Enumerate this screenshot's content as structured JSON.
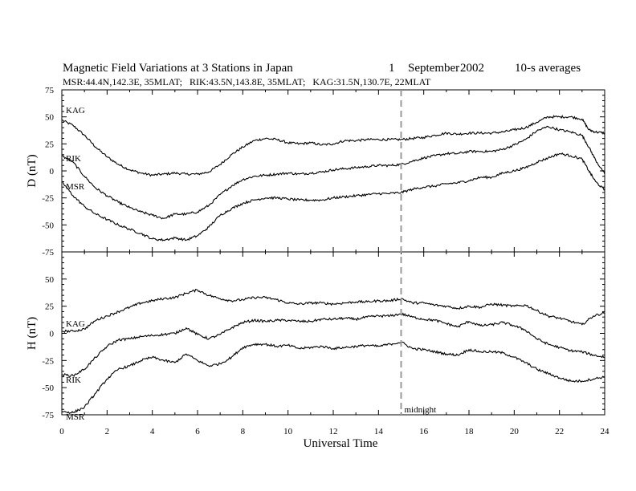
{
  "chart_data": {
    "type": "line",
    "title": "Magnetic Field Variations at 3 Stations in Japan",
    "date_day": "1",
    "date_month": "September",
    "date_year": "2002",
    "averaging": "10-s averages",
    "stations_line": "MSR:44.4N,142.3E, 35MLAT;   RIK:43.5N,143.8E, 35MLAT;   KAG:31.5N,130.7E, 22MLAT",
    "xlabel": "Universal Time",
    "xlim": [
      0,
      24
    ],
    "x_ticks": [
      "0",
      "2",
      "4",
      "6",
      "8",
      "10",
      "12",
      "14",
      "16",
      "18",
      "20",
      "22",
      "24"
    ],
    "marker": {
      "x": 15,
      "label": "midnight"
    },
    "panels": [
      {
        "ylabel": "D (nT)",
        "ylim": [
          -75,
          75
        ],
        "y_ticks": [
          "75",
          "50",
          "25",
          "0",
          "-25",
          "-50",
          "-75"
        ],
        "series": [
          {
            "name": "KAG",
            "x": [
              0,
              0.5,
              1,
              1.5,
              2,
              2.5,
              3,
              3.5,
              4,
              4.5,
              5,
              5.5,
              6,
              6.5,
              7,
              7.5,
              8,
              8.5,
              9,
              9.5,
              10,
              10.5,
              11,
              11.5,
              12,
              12.5,
              13,
              13.5,
              14,
              14.5,
              15,
              15.5,
              16,
              16.5,
              17,
              17.5,
              18,
              18.5,
              19,
              19.5,
              20,
              20.5,
              21,
              21.5,
              22,
              22.5,
              23,
              23.3,
              23.6,
              24
            ],
            "y": [
              47,
              42,
              33,
              22,
              13,
              6,
              1,
              -2,
              -4,
              -3,
              -2,
              -3,
              -3,
              -1,
              6,
              15,
              22,
              28,
              30,
              29,
              26,
              25,
              26,
              24,
              25,
              28,
              28,
              29,
              29,
              29,
              29,
              30,
              31,
              33,
              35,
              34,
              35,
              35,
              35,
              36,
              38,
              40,
              45,
              50,
              50,
              50,
              48,
              38,
              36,
              35
            ]
          },
          {
            "name": "RIK",
            "x": [
              0,
              0.5,
              1,
              1.5,
              2,
              2.5,
              3,
              3.5,
              4,
              4.5,
              5,
              5.5,
              6,
              6.5,
              7,
              7.5,
              8,
              8.5,
              9,
              9.5,
              10,
              10.5,
              11,
              11.5,
              12,
              12.5,
              13,
              13.5,
              14,
              14.5,
              15,
              15.5,
              16,
              16.5,
              17,
              17.5,
              18,
              18.5,
              19,
              19.5,
              20,
              20.5,
              21,
              21.5,
              22,
              22.5,
              23,
              23.3,
              23.6,
              24
            ],
            "y": [
              14,
              8,
              -5,
              -16,
              -23,
              -29,
              -34,
              -38,
              -41,
              -44,
              -40,
              -40,
              -38,
              -32,
              -22,
              -14,
              -8,
              -5,
              -4,
              -3,
              -2,
              -3,
              -2,
              -1,
              1,
              2,
              3,
              4,
              5,
              5,
              6,
              9,
              12,
              14,
              16,
              16,
              18,
              18,
              18,
              20,
              24,
              29,
              37,
              41,
              38,
              36,
              33,
              22,
              10,
              -3
            ]
          },
          {
            "name": "MSR",
            "x": [
              0,
              0.5,
              1,
              1.5,
              2,
              2.5,
              3,
              3.5,
              4,
              4.5,
              5,
              5.5,
              6,
              6.5,
              7,
              7.5,
              8,
              8.5,
              9,
              9.5,
              10,
              10.5,
              11,
              11.5,
              12,
              12.5,
              13,
              13.5,
              14,
              14.5,
              15,
              15.5,
              16,
              16.5,
              17,
              17.5,
              18,
              18.5,
              19,
              19.5,
              20,
              20.5,
              21,
              21.5,
              22,
              22.5,
              23,
              23.3,
              23.6,
              24
            ],
            "y": [
              -10,
              -23,
              -33,
              -40,
              -45,
              -50,
              -54,
              -58,
              -63,
              -64,
              -62,
              -64,
              -60,
              -52,
              -41,
              -35,
              -30,
              -27,
              -25,
              -25,
              -26,
              -27,
              -27,
              -27,
              -25,
              -24,
              -23,
              -22,
              -21,
              -21,
              -20,
              -17,
              -15,
              -14,
              -12,
              -11,
              -9,
              -6,
              -6,
              -2,
              0,
              3,
              8,
              12,
              16,
              14,
              11,
              0,
              -10,
              -18
            ]
          }
        ]
      },
      {
        "ylabel": "H (nT)",
        "ylim": [
          -75,
          75
        ],
        "y_ticks": [
          "",
          "50",
          "25",
          "0",
          "-25",
          "-50",
          "-75"
        ],
        "series": [
          {
            "name": "KAG",
            "x": [
              0,
              0.5,
              1,
              1.5,
              2,
              2.5,
              3,
              3.5,
              4,
              4.5,
              5,
              5.5,
              6,
              6.5,
              7,
              7.5,
              8,
              8.5,
              9,
              9.5,
              10,
              10.5,
              11,
              11.5,
              12,
              12.5,
              13,
              13.5,
              14,
              14.5,
              15,
              15.5,
              16,
              16.5,
              17,
              17.5,
              18,
              18.5,
              19,
              19.5,
              20,
              20.5,
              21,
              21.5,
              22,
              22.5,
              23,
              23.5,
              24
            ],
            "y": [
              2,
              2,
              4,
              12,
              16,
              20,
              24,
              28,
              30,
              32,
              33,
              37,
              40,
              35,
              32,
              30,
              31,
              33,
              33,
              31,
              28,
              27,
              28,
              28,
              27,
              28,
              29,
              29,
              30,
              30,
              32,
              28,
              28,
              26,
              25,
              23,
              25,
              24,
              27,
              26,
              25,
              26,
              21,
              16,
              14,
              11,
              8,
              16,
              19
            ]
          },
          {
            "name": "RIK",
            "x": [
              0,
              0.5,
              1,
              1.5,
              2,
              2.5,
              3,
              3.5,
              4,
              4.5,
              5,
              5.5,
              6,
              6.5,
              7,
              7.5,
              8,
              8.5,
              9,
              9.5,
              10,
              10.5,
              11,
              11.5,
              12,
              12.5,
              13,
              13.5,
              14,
              14.5,
              15,
              15.5,
              16,
              16.5,
              17,
              17.5,
              18,
              18.5,
              19,
              19.5,
              20,
              20.5,
              21,
              21.5,
              22,
              22.5,
              23,
              23.5,
              24
            ],
            "y": [
              -38,
              -39,
              -33,
              -22,
              -12,
              -6,
              -5,
              -3,
              -2,
              -1,
              0,
              5,
              -1,
              -5,
              -1,
              5,
              10,
              12,
              11,
              12,
              12,
              11,
              11,
              13,
              13,
              14,
              13,
              15,
              16,
              16,
              18,
              15,
              13,
              12,
              9,
              6,
              11,
              7,
              8,
              10,
              7,
              3,
              -5,
              -10,
              -13,
              -16,
              -17,
              -20,
              -22
            ]
          },
          {
            "name": "MSR",
            "x": [
              0,
              0.5,
              1,
              1.5,
              2,
              2.5,
              3,
              3.5,
              4,
              4.5,
              5,
              5.5,
              6,
              6.5,
              7,
              7.5,
              8,
              8.5,
              9,
              9.5,
              10,
              10.5,
              11,
              11.5,
              12,
              12.5,
              13,
              13.5,
              14,
              14.5,
              15,
              15.5,
              16,
              16.5,
              17,
              17.5,
              18,
              18.5,
              19,
              19.5,
              20,
              20.5,
              21,
              21.5,
              22,
              22.5,
              23,
              23.5,
              24
            ],
            "y": [
              -72,
              -73,
              -68,
              -55,
              -42,
              -33,
              -30,
              -25,
              -22,
              -25,
              -27,
              -19,
              -25,
              -30,
              -28,
              -22,
              -13,
              -10,
              -10,
              -12,
              -11,
              -14,
              -13,
              -12,
              -14,
              -13,
              -12,
              -11,
              -12,
              -10,
              -8,
              -14,
              -15,
              -17,
              -19,
              -20,
              -15,
              -17,
              -17,
              -18,
              -22,
              -27,
              -33,
              -37,
              -41,
              -44,
              -44,
              -42,
              -40
            ]
          }
        ]
      }
    ]
  }
}
